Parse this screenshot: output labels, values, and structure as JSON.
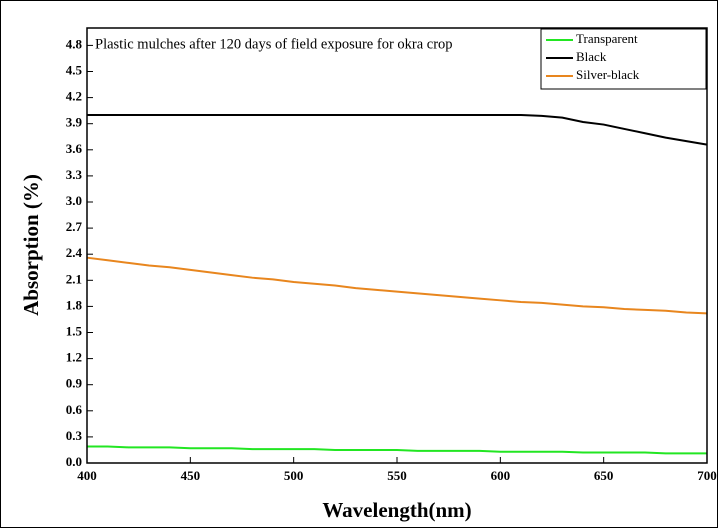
{
  "chart_data": {
    "type": "line",
    "annotation": "Plastic mulches after 120 days of field exposure for okra crop",
    "xlabel": "Wavelength(nm)",
    "ylabel": "Absorption (%)",
    "x": [
      400,
      410,
      420,
      430,
      440,
      450,
      460,
      470,
      480,
      490,
      500,
      510,
      520,
      530,
      540,
      550,
      560,
      570,
      580,
      590,
      600,
      610,
      620,
      630,
      640,
      650,
      660,
      670,
      680,
      690,
      700
    ],
    "series": [
      {
        "name": "Transparent",
        "color": "#22e622",
        "values": [
          0.19,
          0.19,
          0.18,
          0.18,
          0.18,
          0.17,
          0.17,
          0.17,
          0.16,
          0.16,
          0.16,
          0.16,
          0.15,
          0.15,
          0.15,
          0.15,
          0.14,
          0.14,
          0.14,
          0.14,
          0.13,
          0.13,
          0.13,
          0.13,
          0.12,
          0.12,
          0.12,
          0.12,
          0.11,
          0.11,
          0.11
        ]
      },
      {
        "name": "Black",
        "color": "#000000",
        "values": [
          4.0,
          4.0,
          4.0,
          4.0,
          4.0,
          4.0,
          4.0,
          4.0,
          4.0,
          4.0,
          4.0,
          4.0,
          4.0,
          4.0,
          4.0,
          4.0,
          4.0,
          4.0,
          4.0,
          4.0,
          4.0,
          4.0,
          3.99,
          3.97,
          3.92,
          3.89,
          3.84,
          3.79,
          3.74,
          3.7,
          3.66
        ]
      },
      {
        "name": "Silver-black",
        "color": "#e8861e",
        "values": [
          2.36,
          2.33,
          2.3,
          2.27,
          2.25,
          2.22,
          2.19,
          2.16,
          2.13,
          2.11,
          2.08,
          2.06,
          2.04,
          2.01,
          1.99,
          1.97,
          1.95,
          1.93,
          1.91,
          1.89,
          1.87,
          1.85,
          1.84,
          1.82,
          1.8,
          1.79,
          1.77,
          1.76,
          1.75,
          1.73,
          1.72
        ]
      }
    ],
    "xlim": [
      400,
      700
    ],
    "xticks": [
      400,
      450,
      500,
      550,
      600,
      650,
      700
    ],
    "ylim": [
      0,
      5.0
    ],
    "yticks": [
      {
        "value": 0,
        "label": "0.0"
      },
      0.3,
      0.6,
      0.9,
      1.2,
      1.5,
      1.8,
      2.1,
      2.4,
      2.7,
      {
        "value": 3,
        "label": "3.0"
      },
      3.3,
      3.6,
      3.9,
      4.2,
      4.5,
      4.8
    ],
    "legend": "top-right"
  }
}
